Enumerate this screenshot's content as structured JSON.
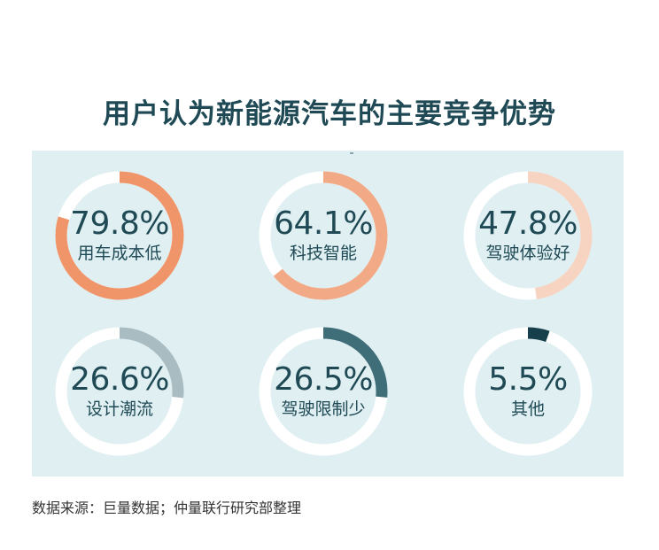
{
  "title": "用户认为新能源汽车的主要竞争优势",
  "source": "数据来源：巨量数据；仲量联行研究部整理",
  "chart_data": {
    "type": "donut",
    "title": "用户认为新能源汽车的主要竞争优势",
    "items": [
      {
        "label": "用车成本低",
        "value": 79.8,
        "display": "79.8%",
        "color": "#f0956a"
      },
      {
        "label": "科技智能",
        "value": 64.1,
        "display": "64.1%",
        "color": "#f2aa86"
      },
      {
        "label": "驾驶体验好",
        "value": 47.8,
        "display": "47.8%",
        "color": "#f7d3c2"
      },
      {
        "label": "设计潮流",
        "value": 26.6,
        "display": "26.6%",
        "color": "#a9bcc2"
      },
      {
        "label": "驾驶限制少",
        "value": 26.5,
        "display": "26.5%",
        "color": "#3f6e79"
      },
      {
        "label": "其他",
        "value": 5.5,
        "display": "5.5%",
        "color": "#163f4b"
      }
    ],
    "track_color": "#ffffff",
    "background_color": "#dfeff2"
  }
}
